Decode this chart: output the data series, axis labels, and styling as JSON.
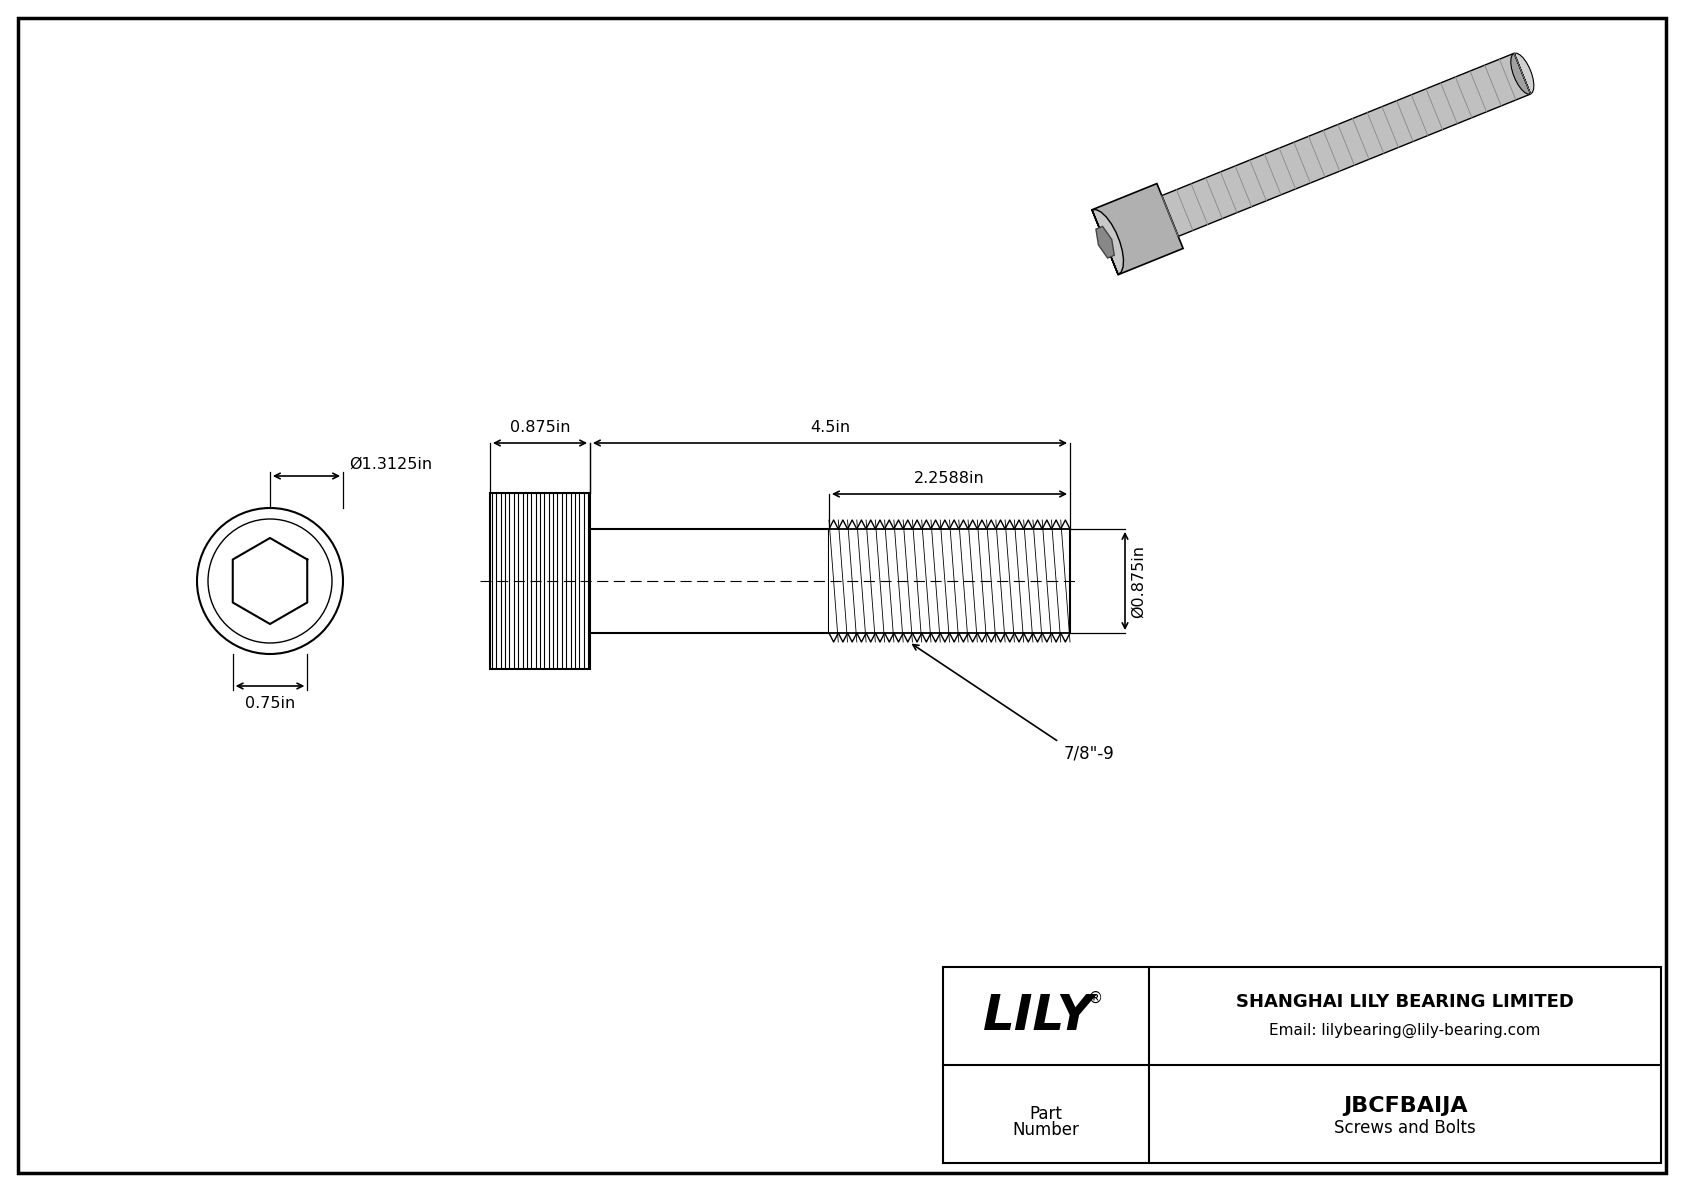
{
  "bg_color": "#ffffff",
  "border_color": "#000000",
  "line_color": "#000000",
  "title_company": "SHANGHAI LILY BEARING LIMITED",
  "title_email": "Email: lilybearing@lily-bearing.com",
  "logo_text": "LILY",
  "logo_reg": "®",
  "part_label_1": "Part",
  "part_label_2": "Number",
  "part_number": "JBCFBAIJA",
  "part_type": "Screws and Bolts",
  "dim_head_diameter": "Ø1.3125in",
  "dim_head_width": "0.75in",
  "dim_total_length": "4.5in",
  "dim_head_length": "0.875in",
  "dim_thread_length": "2.2588in",
  "dim_shank_diameter": "Ø0.875in",
  "dim_thread_spec": "7/8\"-9"
}
